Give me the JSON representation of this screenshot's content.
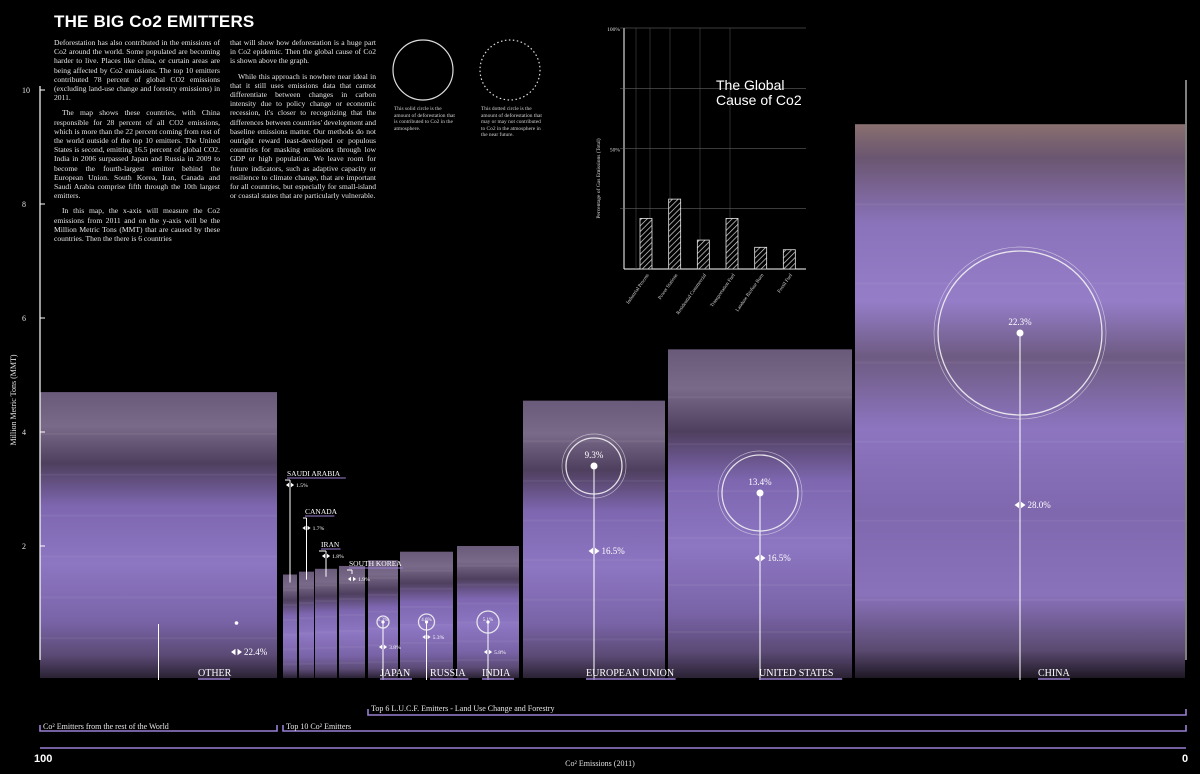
{
  "page": {
    "title": "THE BIG Co2 EMITTERS",
    "body_col1": [
      "Deforestation has also contributed in the emissions of Co2 around the world. Some populated are becoming harder to live. Places like china, or curtain areas are being affected by Co2 emissions. The top 10 emitters contributed 78 percent of global CO2 emissions (excluding land-use change and forestry emissions) in 2011.",
      "The map shows these countries, with China responsible for 28 percent of all CO2 emissions, which is more than the 22 percent coming from rest of the world outside of the top 10 emitters. The United States is second, emitting 16.5 percent of global CO2. India in 2006 surpassed Japan and Russia in 2009 to become the fourth-largest emitter behind the European Union. South Korea, Iran, Canada and Saudi Arabia comprise fifth through the 10th largest emitters.",
      "In this map, the x-axis will measure the Co2 emissions from 2011 and on the y-axis will be the Million Metric Tons (MMT) that are caused by these countries. Then the there is 6 countries"
    ],
    "body_col2": [
      "that will show how deforestation is a huge part in Co2 epidemic. Then the global cause of Co2 is shown above the graph.",
      "While this approach is nowhere near ideal in that it still uses emissions data that cannot differentiate between changes in carbon intensity due to policy change or economic recession, it's closer to recognizing that the differences between countries' development and baseline emissions matter. Our methods do not outright reward least-developed or populous countries for masking emissions through low GDP or high population. We leave room for future indicators, such as adaptive capacity or resilience to climate change, that are important for all countries, but especially for small-island or coastal states that are particularly vulnerable."
    ],
    "legend_solid": "This solid circle is the amount of deforestation that is contributed to Co2 in the atmosphere.",
    "legend_dotted": "This dotted circle is the amount of deforestation that may or may not contributed to Co2 in the atmosphere in the near future."
  },
  "chart_data": [
    {
      "type": "bar",
      "title": "The Global\nCause of Co2",
      "ylabel": "Percentage of Gas Emissions (Total)",
      "xlabel": "",
      "yticks": [
        "100%",
        "50%"
      ],
      "ylim": [
        0,
        100
      ],
      "grid": true,
      "categories": [
        "Industrial Process",
        "Power Stations",
        "Residential Commercial",
        "Transportation Fuel",
        "Landuse Biofuse Burn",
        "Fossil Fuel"
      ],
      "values": [
        21,
        29,
        12,
        21,
        9,
        8
      ]
    },
    {
      "type": "bar",
      "title": "",
      "xlabel": "Co² Emissions (2011)",
      "ylabel": "Million Metric Tons (MMT)",
      "ylim": [
        0,
        10.8
      ],
      "yticks": [
        2,
        4,
        6,
        8,
        10
      ],
      "x_start_label": "100",
      "x_end_label": "0",
      "bars": [
        {
          "name": "OTHER",
          "value": 4.7,
          "share": "22.4%",
          "deforestation": null
        },
        {
          "name": "SAUDI ARABIA",
          "value": 1.5,
          "share": "1.5%",
          "deforestation": null
        },
        {
          "name": "CANADA",
          "value": 1.55,
          "share": "1.7%",
          "deforestation": null
        },
        {
          "name": "IRAN",
          "value": 1.6,
          "share": "1.8%",
          "deforestation": null
        },
        {
          "name": "SOUTH KOREA",
          "value": 1.65,
          "share": "1.9%",
          "deforestation": null
        },
        {
          "name": "JAPAN",
          "value": 1.75,
          "share": "3.8%",
          "deforestation": "1.3%"
        },
        {
          "name": "RUSSIA",
          "value": 1.9,
          "share": "5.3%",
          "deforestation": "4.6%"
        },
        {
          "name": "INDIA",
          "value": 2.0,
          "share": "5.8%",
          "deforestation": "5.1%"
        },
        {
          "name": "EUROPEAN UNION",
          "value": 4.55,
          "share": "16.5%",
          "deforestation": "9.3%"
        },
        {
          "name": "UNITED STATES",
          "value": 5.45,
          "share": "16.5%",
          "deforestation": "13.4%"
        },
        {
          "name": "CHINA",
          "value": 9.4,
          "share": "28.0%",
          "deforestation": "22.3%"
        }
      ],
      "groups": [
        {
          "label": "Co² Emitters from the rest of the World"
        },
        {
          "label": "Top 10 Co² Emitters"
        },
        {
          "label": "Top 6 L.U.C.F. Emitters - Land Use Change and Forestry"
        }
      ]
    }
  ],
  "colors": {
    "background": "#000000",
    "bar_fill": "#8a6fbf",
    "bar_band": "#5e4a78",
    "bar_rust": "#8c6a6a",
    "bracket": "#9b7fd4",
    "label_ul": "#9b7fd4",
    "text": "#e6e6e6"
  }
}
